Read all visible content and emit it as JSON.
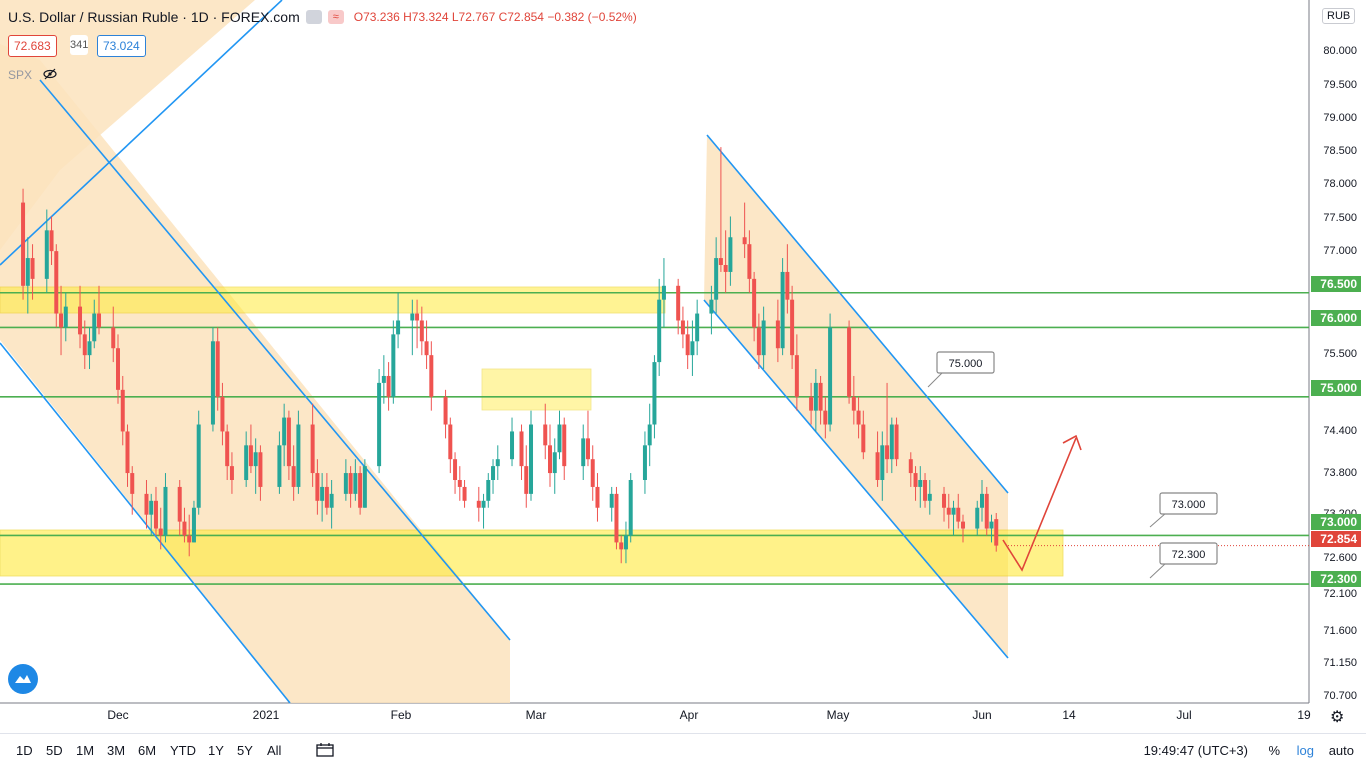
{
  "header": {
    "symbol_title": "U.S. Dollar / Russian Ruble · 1D · FOREX.com",
    "ohlc": {
      "open": "O73.236",
      "high": "H73.324",
      "low": "L72.767",
      "close": "C72.854",
      "change": "−0.382 (−0.52%)"
    },
    "sell_price": "72.683",
    "spread": "341",
    "buy_price": "73.024",
    "overlay_symbol": "SPX"
  },
  "price_scale": {
    "currency": "RUB",
    "ticks": [
      "80.000",
      "79.500",
      "79.000",
      "78.500",
      "78.000",
      "77.500",
      "77.000",
      "76.500",
      "76.000",
      "75.500",
      "75.000",
      "74.400",
      "73.800",
      "73.200",
      "73.000",
      "72.854",
      "72.600",
      "72.300",
      "72.100",
      "71.600",
      "71.150",
      "70.700"
    ],
    "highlight_labels": [
      {
        "value": "76.500",
        "color": "#4caf50"
      },
      {
        "value": "76.000",
        "color": "#4caf50"
      },
      {
        "value": "75.000",
        "color": "#4caf50"
      },
      {
        "value": "73.000",
        "color": "#4caf50"
      },
      {
        "value": "72.854",
        "color": "#e0453a"
      },
      {
        "value": "72.300",
        "color": "#4caf50"
      }
    ]
  },
  "time_scale": {
    "labels": [
      "Dec",
      "2021",
      "Feb",
      "Mar",
      "Apr",
      "May",
      "Jun",
      "14",
      "Jul",
      "19"
    ]
  },
  "callouts": [
    "75.000",
    "73.000",
    "72.300"
  ],
  "bottom_toolbar": {
    "timeframes": [
      "1D",
      "5D",
      "1M",
      "3M",
      "6M",
      "YTD",
      "1Y",
      "5Y",
      "All"
    ],
    "clock": "19:49:47 (UTC+3)",
    "percent_label": "%",
    "log_label": "log",
    "auto_label": "auto"
  },
  "colors": {
    "up": "#26a69a",
    "down": "#ef5350",
    "support": "#4caf50",
    "channel": "#2196f3",
    "zone_yellow": "#ffeb3b",
    "channel_fill": "#fbe3bd",
    "arrow": "#e0453a"
  },
  "chart_data": {
    "type": "candlestick",
    "title": "U.S. Dollar / Russian Ruble",
    "ylim": [
      70.7,
      80.1
    ],
    "x_range": [
      "2020-11-10",
      "2021-07-19"
    ],
    "horizontal_levels": [
      76.5,
      76.0,
      75.0,
      73.0,
      72.3
    ],
    "last_price": 72.854,
    "candles": [
      {
        "date": "2020-11-11",
        "o": 77.8,
        "h": 78.0,
        "l": 76.4,
        "c": 76.6
      },
      {
        "date": "2020-11-12",
        "o": 76.6,
        "h": 77.3,
        "l": 76.2,
        "c": 77.0
      },
      {
        "date": "2020-11-13",
        "o": 77.0,
        "h": 77.2,
        "l": 76.4,
        "c": 76.7
      },
      {
        "date": "2020-11-16",
        "o": 76.7,
        "h": 77.7,
        "l": 76.5,
        "c": 77.4
      },
      {
        "date": "2020-11-17",
        "o": 77.4,
        "h": 77.6,
        "l": 76.9,
        "c": 77.1
      },
      {
        "date": "2020-11-18",
        "o": 77.1,
        "h": 77.2,
        "l": 76.0,
        "c": 76.2
      },
      {
        "date": "2020-11-19",
        "o": 76.2,
        "h": 76.6,
        "l": 75.6,
        "c": 76.0
      },
      {
        "date": "2020-11-20",
        "o": 76.0,
        "h": 76.5,
        "l": 75.8,
        "c": 76.3
      },
      {
        "date": "2020-11-23",
        "o": 76.3,
        "h": 76.6,
        "l": 75.7,
        "c": 75.9
      },
      {
        "date": "2020-11-24",
        "o": 75.9,
        "h": 76.1,
        "l": 75.4,
        "c": 75.6
      },
      {
        "date": "2020-11-25",
        "o": 75.6,
        "h": 76.0,
        "l": 75.4,
        "c": 75.8
      },
      {
        "date": "2020-11-26",
        "o": 75.8,
        "h": 76.4,
        "l": 75.7,
        "c": 76.2
      },
      {
        "date": "2020-11-27",
        "o": 76.2,
        "h": 76.6,
        "l": 75.9,
        "c": 76.0
      },
      {
        "date": "2020-11-30",
        "o": 76.0,
        "h": 76.3,
        "l": 75.5,
        "c": 75.7
      },
      {
        "date": "2020-12-01",
        "o": 75.7,
        "h": 75.9,
        "l": 74.9,
        "c": 75.1
      },
      {
        "date": "2020-12-02",
        "o": 75.1,
        "h": 75.3,
        "l": 74.3,
        "c": 74.5
      },
      {
        "date": "2020-12-03",
        "o": 74.5,
        "h": 74.6,
        "l": 73.7,
        "c": 73.9
      },
      {
        "date": "2020-12-04",
        "o": 73.9,
        "h": 74.0,
        "l": 73.3,
        "c": 73.6
      },
      {
        "date": "2020-12-07",
        "o": 73.6,
        "h": 73.8,
        "l": 73.1,
        "c": 73.3
      },
      {
        "date": "2020-12-08",
        "o": 73.3,
        "h": 73.6,
        "l": 73.0,
        "c": 73.5
      },
      {
        "date": "2020-12-09",
        "o": 73.5,
        "h": 73.7,
        "l": 73.0,
        "c": 73.1
      },
      {
        "date": "2020-12-10",
        "o": 73.1,
        "h": 73.4,
        "l": 72.8,
        "c": 73.0
      },
      {
        "date": "2020-12-11",
        "o": 73.0,
        "h": 73.9,
        "l": 72.9,
        "c": 73.7
      },
      {
        "date": "2020-12-14",
        "o": 73.7,
        "h": 73.8,
        "l": 73.0,
        "c": 73.2
      },
      {
        "date": "2020-12-15",
        "o": 73.2,
        "h": 73.4,
        "l": 72.9,
        "c": 73.0
      },
      {
        "date": "2020-12-16",
        "o": 73.0,
        "h": 73.3,
        "l": 72.7,
        "c": 72.9
      },
      {
        "date": "2020-12-17",
        "o": 72.9,
        "h": 73.5,
        "l": 72.9,
        "c": 73.4
      },
      {
        "date": "2020-12-18",
        "o": 73.4,
        "h": 74.8,
        "l": 73.3,
        "c": 74.6
      },
      {
        "date": "2020-12-21",
        "o": 74.6,
        "h": 76.0,
        "l": 74.5,
        "c": 75.8
      },
      {
        "date": "2020-12-22",
        "o": 75.8,
        "h": 76.0,
        "l": 74.8,
        "c": 75.0
      },
      {
        "date": "2020-12-23",
        "o": 75.0,
        "h": 75.2,
        "l": 74.3,
        "c": 74.5
      },
      {
        "date": "2020-12-24",
        "o": 74.5,
        "h": 74.6,
        "l": 73.8,
        "c": 74.0
      },
      {
        "date": "2020-12-25",
        "o": 74.0,
        "h": 74.2,
        "l": 73.6,
        "c": 73.8
      },
      {
        "date": "2020-12-28",
        "o": 73.8,
        "h": 74.5,
        "l": 73.7,
        "c": 74.3
      },
      {
        "date": "2020-12-29",
        "o": 74.3,
        "h": 74.6,
        "l": 73.9,
        "c": 74.0
      },
      {
        "date": "2020-12-30",
        "o": 74.0,
        "h": 74.4,
        "l": 73.6,
        "c": 74.2
      },
      {
        "date": "2020-12-31",
        "o": 74.2,
        "h": 74.3,
        "l": 73.5,
        "c": 73.7
      },
      {
        "date": "2021-01-04",
        "o": 73.7,
        "h": 74.5,
        "l": 73.6,
        "c": 74.3
      },
      {
        "date": "2021-01-05",
        "o": 74.3,
        "h": 74.9,
        "l": 74.0,
        "c": 74.7
      },
      {
        "date": "2021-01-06",
        "o": 74.7,
        "h": 74.8,
        "l": 73.8,
        "c": 74.0
      },
      {
        "date": "2021-01-07",
        "o": 74.0,
        "h": 74.3,
        "l": 73.5,
        "c": 73.7
      },
      {
        "date": "2021-01-08",
        "o": 73.7,
        "h": 74.8,
        "l": 73.6,
        "c": 74.6
      },
      {
        "date": "2021-01-11",
        "o": 74.6,
        "h": 74.9,
        "l": 73.7,
        "c": 73.9
      },
      {
        "date": "2021-01-12",
        "o": 73.9,
        "h": 74.1,
        "l": 73.3,
        "c": 73.5
      },
      {
        "date": "2021-01-13",
        "o": 73.5,
        "h": 73.9,
        "l": 73.2,
        "c": 73.7
      },
      {
        "date": "2021-01-14",
        "o": 73.7,
        "h": 73.9,
        "l": 73.3,
        "c": 73.4
      },
      {
        "date": "2021-01-15",
        "o": 73.4,
        "h": 73.8,
        "l": 73.1,
        "c": 73.6
      },
      {
        "date": "2021-01-18",
        "o": 73.6,
        "h": 74.1,
        "l": 73.5,
        "c": 73.9
      },
      {
        "date": "2021-01-19",
        "o": 73.9,
        "h": 74.0,
        "l": 73.4,
        "c": 73.6
      },
      {
        "date": "2021-01-20",
        "o": 73.6,
        "h": 74.1,
        "l": 73.5,
        "c": 73.9
      },
      {
        "date": "2021-01-21",
        "o": 73.9,
        "h": 74.0,
        "l": 73.3,
        "c": 73.4
      },
      {
        "date": "2021-01-22",
        "o": 73.4,
        "h": 74.1,
        "l": 73.4,
        "c": 74.0
      },
      {
        "date": "2021-01-25",
        "o": 74.0,
        "h": 75.4,
        "l": 73.9,
        "c": 75.2
      },
      {
        "date": "2021-01-26",
        "o": 75.2,
        "h": 75.6,
        "l": 74.9,
        "c": 75.3
      },
      {
        "date": "2021-01-27",
        "o": 75.3,
        "h": 75.5,
        "l": 74.8,
        "c": 75.0
      },
      {
        "date": "2021-01-28",
        "o": 75.0,
        "h": 76.1,
        "l": 74.9,
        "c": 75.9
      },
      {
        "date": "2021-01-29",
        "o": 75.9,
        "h": 76.5,
        "l": 75.7,
        "c": 76.1
      },
      {
        "date": "2021-02-01",
        "o": 76.1,
        "h": 76.4,
        "l": 75.6,
        "c": 76.2
      },
      {
        "date": "2021-02-02",
        "o": 76.2,
        "h": 76.4,
        "l": 75.7,
        "c": 76.1
      },
      {
        "date": "2021-02-03",
        "o": 76.1,
        "h": 76.3,
        "l": 75.6,
        "c": 75.8
      },
      {
        "date": "2021-02-04",
        "o": 75.8,
        "h": 76.1,
        "l": 75.4,
        "c": 75.6
      },
      {
        "date": "2021-02-05",
        "o": 75.6,
        "h": 75.8,
        "l": 74.8,
        "c": 75.0
      },
      {
        "date": "2021-02-08",
        "o": 75.0,
        "h": 75.1,
        "l": 74.4,
        "c": 74.6
      },
      {
        "date": "2021-02-09",
        "o": 74.6,
        "h": 74.7,
        "l": 73.9,
        "c": 74.1
      },
      {
        "date": "2021-02-10",
        "o": 74.1,
        "h": 74.2,
        "l": 73.6,
        "c": 73.8
      },
      {
        "date": "2021-02-11",
        "o": 73.8,
        "h": 74.0,
        "l": 73.5,
        "c": 73.7
      },
      {
        "date": "2021-02-12",
        "o": 73.7,
        "h": 73.8,
        "l": 73.4,
        "c": 73.5
      },
      {
        "date": "2021-02-15",
        "o": 73.5,
        "h": 73.7,
        "l": 73.2,
        "c": 73.4
      },
      {
        "date": "2021-02-16",
        "o": 73.4,
        "h": 73.6,
        "l": 73.1,
        "c": 73.5
      },
      {
        "date": "2021-02-17",
        "o": 73.5,
        "h": 73.9,
        "l": 73.4,
        "c": 73.8
      },
      {
        "date": "2021-02-18",
        "o": 73.8,
        "h": 74.1,
        "l": 73.6,
        "c": 74.0
      },
      {
        "date": "2021-02-19",
        "o": 74.0,
        "h": 74.3,
        "l": 73.8,
        "c": 74.1
      },
      {
        "date": "2021-02-22",
        "o": 74.1,
        "h": 74.7,
        "l": 74.0,
        "c": 74.5
      },
      {
        "date": "2021-02-24",
        "o": 74.5,
        "h": 74.6,
        "l": 73.8,
        "c": 74.0
      },
      {
        "date": "2021-02-25",
        "o": 74.0,
        "h": 74.3,
        "l": 73.4,
        "c": 73.6
      },
      {
        "date": "2021-02-26",
        "o": 73.6,
        "h": 74.8,
        "l": 73.5,
        "c": 74.6
      },
      {
        "date": "2021-03-01",
        "o": 74.6,
        "h": 74.9,
        "l": 74.1,
        "c": 74.3
      },
      {
        "date": "2021-03-02",
        "o": 74.3,
        "h": 74.6,
        "l": 73.7,
        "c": 73.9
      },
      {
        "date": "2021-03-03",
        "o": 73.9,
        "h": 74.4,
        "l": 73.6,
        "c": 74.2
      },
      {
        "date": "2021-03-04",
        "o": 74.2,
        "h": 74.8,
        "l": 74.1,
        "c": 74.6
      },
      {
        "date": "2021-03-05",
        "o": 74.6,
        "h": 74.7,
        "l": 73.8,
        "c": 74.0
      },
      {
        "date": "2021-03-09",
        "o": 74.0,
        "h": 74.6,
        "l": 73.8,
        "c": 74.4
      },
      {
        "date": "2021-03-10",
        "o": 74.4,
        "h": 74.8,
        "l": 74.0,
        "c": 74.1
      },
      {
        "date": "2021-03-11",
        "o": 74.1,
        "h": 74.3,
        "l": 73.5,
        "c": 73.7
      },
      {
        "date": "2021-03-12",
        "o": 73.7,
        "h": 73.9,
        "l": 73.2,
        "c": 73.4
      },
      {
        "date": "2021-03-15",
        "o": 73.4,
        "h": 73.7,
        "l": 73.2,
        "c": 73.6
      },
      {
        "date": "2021-03-16",
        "o": 73.6,
        "h": 73.7,
        "l": 72.8,
        "c": 72.9
      },
      {
        "date": "2021-03-17",
        "o": 72.9,
        "h": 73.0,
        "l": 72.6,
        "c": 72.8
      },
      {
        "date": "2021-03-18",
        "o": 72.8,
        "h": 73.2,
        "l": 72.6,
        "c": 73.0
      },
      {
        "date": "2021-03-19",
        "o": 73.0,
        "h": 73.9,
        "l": 72.9,
        "c": 73.8
      },
      {
        "date": "2021-03-22",
        "o": 73.8,
        "h": 74.5,
        "l": 73.6,
        "c": 74.3
      },
      {
        "date": "2021-03-23",
        "o": 74.3,
        "h": 74.9,
        "l": 74.0,
        "c": 74.6
      },
      {
        "date": "2021-03-24",
        "o": 74.6,
        "h": 75.6,
        "l": 74.4,
        "c": 75.5
      },
      {
        "date": "2021-03-25",
        "o": 75.5,
        "h": 76.7,
        "l": 75.3,
        "c": 76.4
      },
      {
        "date": "2021-03-26",
        "o": 76.4,
        "h": 77.0,
        "l": 76.0,
        "c": 76.6
      },
      {
        "date": "2021-03-29",
        "o": 76.6,
        "h": 76.7,
        "l": 75.9,
        "c": 76.1
      },
      {
        "date": "2021-03-30",
        "o": 76.1,
        "h": 76.3,
        "l": 75.7,
        "c": 75.9
      },
      {
        "date": "2021-03-31",
        "o": 75.9,
        "h": 76.1,
        "l": 75.4,
        "c": 75.6
      },
      {
        "date": "2021-04-01",
        "o": 75.6,
        "h": 76.1,
        "l": 75.3,
        "c": 75.8
      },
      {
        "date": "2021-04-02",
        "o": 75.8,
        "h": 76.4,
        "l": 75.6,
        "c": 76.2
      },
      {
        "date": "2021-04-05",
        "o": 76.2,
        "h": 76.6,
        "l": 75.9,
        "c": 76.4
      },
      {
        "date": "2021-04-06",
        "o": 76.4,
        "h": 77.3,
        "l": 76.2,
        "c": 77.0
      },
      {
        "date": "2021-04-07",
        "o": 77.0,
        "h": 78.6,
        "l": 76.8,
        "c": 76.9
      },
      {
        "date": "2021-04-08",
        "o": 76.9,
        "h": 77.4,
        "l": 76.5,
        "c": 76.8
      },
      {
        "date": "2021-04-09",
        "o": 76.8,
        "h": 77.6,
        "l": 76.6,
        "c": 77.3
      },
      {
        "date": "2021-04-12",
        "o": 77.3,
        "h": 77.8,
        "l": 77.0,
        "c": 77.2
      },
      {
        "date": "2021-04-13",
        "o": 77.2,
        "h": 77.4,
        "l": 76.5,
        "c": 76.7
      },
      {
        "date": "2021-04-14",
        "o": 76.7,
        "h": 76.8,
        "l": 75.8,
        "c": 76.0
      },
      {
        "date": "2021-04-15",
        "o": 76.0,
        "h": 76.2,
        "l": 75.4,
        "c": 75.6
      },
      {
        "date": "2021-04-16",
        "o": 75.6,
        "h": 76.3,
        "l": 75.4,
        "c": 76.1
      },
      {
        "date": "2021-04-19",
        "o": 76.1,
        "h": 76.4,
        "l": 75.5,
        "c": 75.7
      },
      {
        "date": "2021-04-20",
        "o": 75.7,
        "h": 77.0,
        "l": 75.6,
        "c": 76.8
      },
      {
        "date": "2021-04-21",
        "o": 76.8,
        "h": 77.2,
        "l": 76.2,
        "c": 76.4
      },
      {
        "date": "2021-04-22",
        "o": 76.4,
        "h": 76.6,
        "l": 75.4,
        "c": 75.6
      },
      {
        "date": "2021-04-23",
        "o": 75.6,
        "h": 75.9,
        "l": 74.8,
        "c": 75.0
      },
      {
        "date": "2021-04-26",
        "o": 75.0,
        "h": 75.2,
        "l": 74.6,
        "c": 74.8
      },
      {
        "date": "2021-04-27",
        "o": 74.8,
        "h": 75.4,
        "l": 74.5,
        "c": 75.2
      },
      {
        "date": "2021-04-28",
        "o": 75.2,
        "h": 75.3,
        "l": 74.6,
        "c": 74.8
      },
      {
        "date": "2021-04-29",
        "o": 74.8,
        "h": 75.0,
        "l": 74.4,
        "c": 74.6
      },
      {
        "date": "2021-04-30",
        "o": 74.6,
        "h": 76.2,
        "l": 74.5,
        "c": 76.0
      },
      {
        "date": "2021-05-04",
        "o": 76.0,
        "h": 76.1,
        "l": 74.9,
        "c": 75.0
      },
      {
        "date": "2021-05-05",
        "o": 75.0,
        "h": 75.3,
        "l": 74.6,
        "c": 74.8
      },
      {
        "date": "2021-05-06",
        "o": 74.8,
        "h": 75.0,
        "l": 74.4,
        "c": 74.6
      },
      {
        "date": "2021-05-07",
        "o": 74.6,
        "h": 74.8,
        "l": 74.1,
        "c": 74.2
      },
      {
        "date": "2021-05-10",
        "o": 74.2,
        "h": 74.5,
        "l": 73.7,
        "c": 73.8
      },
      {
        "date": "2021-05-11",
        "o": 73.8,
        "h": 74.5,
        "l": 73.5,
        "c": 74.3
      },
      {
        "date": "2021-05-12",
        "o": 74.3,
        "h": 75.2,
        "l": 73.9,
        "c": 74.1
      },
      {
        "date": "2021-05-13",
        "o": 74.1,
        "h": 74.7,
        "l": 73.9,
        "c": 74.6
      },
      {
        "date": "2021-05-14",
        "o": 74.6,
        "h": 74.7,
        "l": 74.0,
        "c": 74.1
      },
      {
        "date": "2021-05-17",
        "o": 74.1,
        "h": 74.2,
        "l": 73.7,
        "c": 73.9
      },
      {
        "date": "2021-05-18",
        "o": 73.9,
        "h": 74.0,
        "l": 73.5,
        "c": 73.7
      },
      {
        "date": "2021-05-19",
        "o": 73.7,
        "h": 74.0,
        "l": 73.4,
        "c": 73.8
      },
      {
        "date": "2021-05-20",
        "o": 73.8,
        "h": 73.9,
        "l": 73.4,
        "c": 73.5
      },
      {
        "date": "2021-05-21",
        "o": 73.5,
        "h": 73.8,
        "l": 73.3,
        "c": 73.6
      },
      {
        "date": "2021-05-24",
        "o": 73.6,
        "h": 73.7,
        "l": 73.2,
        "c": 73.4
      },
      {
        "date": "2021-05-25",
        "o": 73.4,
        "h": 73.6,
        "l": 73.1,
        "c": 73.3
      },
      {
        "date": "2021-05-26",
        "o": 73.3,
        "h": 73.5,
        "l": 73.0,
        "c": 73.4
      },
      {
        "date": "2021-05-27",
        "o": 73.4,
        "h": 73.6,
        "l": 73.1,
        "c": 73.2
      },
      {
        "date": "2021-05-28",
        "o": 73.2,
        "h": 73.3,
        "l": 72.9,
        "c": 73.1
      },
      {
        "date": "2021-05-31",
        "o": 73.1,
        "h": 73.5,
        "l": 73.0,
        "c": 73.4
      },
      {
        "date": "2021-06-01",
        "o": 73.4,
        "h": 73.8,
        "l": 73.2,
        "c": 73.6
      },
      {
        "date": "2021-06-02",
        "o": 73.6,
        "h": 73.7,
        "l": 73.0,
        "c": 73.1
      },
      {
        "date": "2021-06-03",
        "o": 73.1,
        "h": 73.3,
        "l": 72.9,
        "c": 73.2
      },
      {
        "date": "2021-06-04",
        "o": 73.236,
        "h": 73.324,
        "l": 72.767,
        "c": 72.854
      }
    ]
  }
}
